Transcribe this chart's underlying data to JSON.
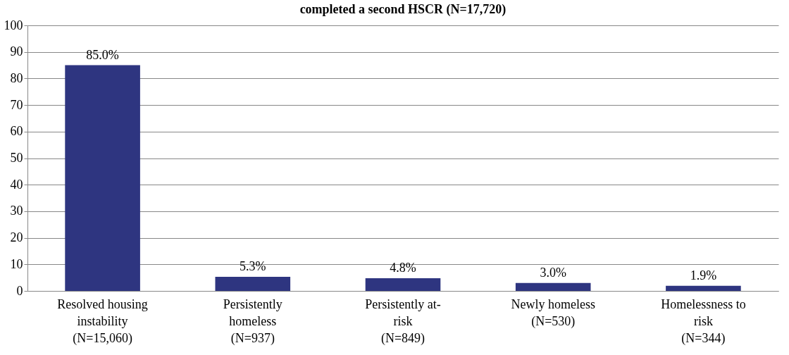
{
  "chart_data": {
    "type": "bar",
    "title": "completed a second HSCR (N=17,720)",
    "categories": [
      "Resolved housing\ninstability\n(N=15,060)",
      "Persistently\nhomeless\n(N=937)",
      "Persistently at-\nrisk\n(N=849)",
      "Newly homeless\n(N=530)",
      "Homelessness to\nrisk\n(N=344)"
    ],
    "values": [
      85.0,
      5.3,
      4.8,
      3.0,
      1.9
    ],
    "value_labels": [
      "85.0%",
      "5.3%",
      "4.8%",
      "3.0%",
      "1.9%"
    ],
    "color": "#2e3580",
    "ylim": [
      0,
      100
    ],
    "yticks": [
      0,
      10,
      20,
      30,
      40,
      50,
      60,
      70,
      80,
      90,
      100
    ],
    "grid": "y"
  }
}
